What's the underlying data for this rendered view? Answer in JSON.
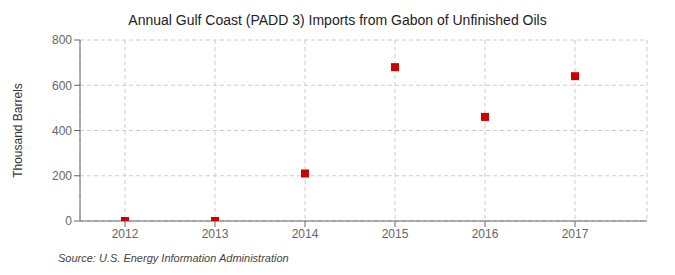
{
  "chart_data": {
    "type": "scatter",
    "title": "Annual Gulf Coast (PADD 3) Imports from Gabon of Unfinished Oils",
    "ylabel": "Thousand Barrels",
    "annotation": "Source: U.S. Energy Information Administration",
    "x": [
      2012,
      2013,
      2014,
      2015,
      2016,
      2017
    ],
    "values": [
      0,
      0,
      210,
      680,
      460,
      640
    ],
    "xlim": [
      2011.5,
      2017.8
    ],
    "ylim": [
      0,
      800
    ],
    "xticks": [
      2012,
      2013,
      2014,
      2015,
      2016,
      2017
    ],
    "yticks": [
      0,
      200,
      400,
      600,
      800
    ],
    "color": "#cc0000",
    "marker": "square",
    "grid": true
  }
}
